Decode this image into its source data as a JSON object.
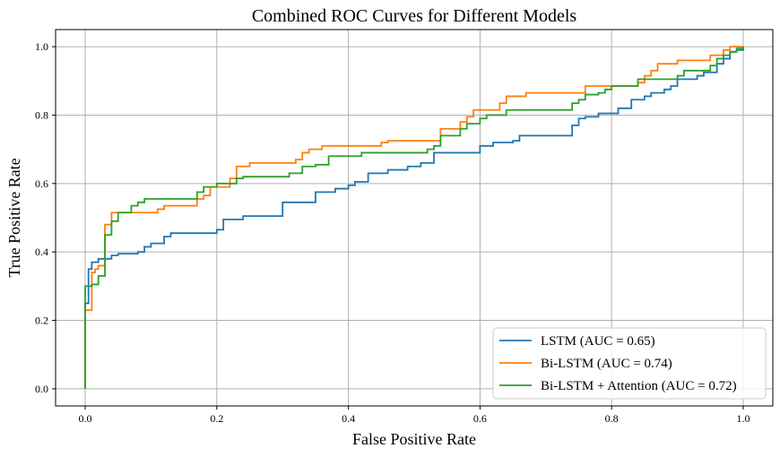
{
  "chart_data": {
    "type": "line",
    "title": "Combined ROC Curves for Different Models",
    "xlabel": "False Positive Rate",
    "ylabel": "True Positive Rate",
    "xlim": [
      -0.045,
      1.045
    ],
    "ylim": [
      -0.05,
      1.05
    ],
    "xticks": [
      0.0,
      0.2,
      0.4,
      0.6,
      0.8,
      1.0
    ],
    "yticks": [
      0.0,
      0.2,
      0.4,
      0.6,
      0.8,
      1.0
    ],
    "xtick_labels": [
      "0.0",
      "0.2",
      "0.4",
      "0.6",
      "0.8",
      "1.0"
    ],
    "ytick_labels": [
      "0.0",
      "0.2",
      "0.4",
      "0.6",
      "0.8",
      "1.0"
    ],
    "grid": true,
    "legend_position": "lower-right",
    "series": [
      {
        "name": "LSTM (AUC = 0.65)",
        "color": "#1f77b4",
        "points": [
          [
            0,
            0
          ],
          [
            0,
            0.25
          ],
          [
            0.005,
            0.25
          ],
          [
            0.005,
            0.35
          ],
          [
            0.01,
            0.35
          ],
          [
            0.01,
            0.37
          ],
          [
            0.02,
            0.37
          ],
          [
            0.02,
            0.38
          ],
          [
            0.04,
            0.38
          ],
          [
            0.04,
            0.39
          ],
          [
            0.05,
            0.39
          ],
          [
            0.05,
            0.395
          ],
          [
            0.08,
            0.395
          ],
          [
            0.08,
            0.4
          ],
          [
            0.09,
            0.4
          ],
          [
            0.09,
            0.415
          ],
          [
            0.1,
            0.415
          ],
          [
            0.1,
            0.425
          ],
          [
            0.12,
            0.425
          ],
          [
            0.12,
            0.445
          ],
          [
            0.13,
            0.445
          ],
          [
            0.13,
            0.455
          ],
          [
            0.2,
            0.455
          ],
          [
            0.2,
            0.465
          ],
          [
            0.21,
            0.465
          ],
          [
            0.21,
            0.495
          ],
          [
            0.24,
            0.495
          ],
          [
            0.24,
            0.505
          ],
          [
            0.3,
            0.505
          ],
          [
            0.3,
            0.545
          ],
          [
            0.35,
            0.545
          ],
          [
            0.35,
            0.575
          ],
          [
            0.38,
            0.575
          ],
          [
            0.38,
            0.585
          ],
          [
            0.4,
            0.585
          ],
          [
            0.4,
            0.595
          ],
          [
            0.41,
            0.595
          ],
          [
            0.41,
            0.605
          ],
          [
            0.43,
            0.605
          ],
          [
            0.43,
            0.63
          ],
          [
            0.46,
            0.63
          ],
          [
            0.46,
            0.64
          ],
          [
            0.49,
            0.64
          ],
          [
            0.49,
            0.65
          ],
          [
            0.51,
            0.65
          ],
          [
            0.51,
            0.66
          ],
          [
            0.53,
            0.66
          ],
          [
            0.53,
            0.69
          ],
          [
            0.6,
            0.69
          ],
          [
            0.6,
            0.71
          ],
          [
            0.62,
            0.71
          ],
          [
            0.62,
            0.72
          ],
          [
            0.65,
            0.72
          ],
          [
            0.65,
            0.725
          ],
          [
            0.66,
            0.725
          ],
          [
            0.66,
            0.74
          ],
          [
            0.74,
            0.74
          ],
          [
            0.74,
            0.77
          ],
          [
            0.75,
            0.77
          ],
          [
            0.75,
            0.79
          ],
          [
            0.76,
            0.79
          ],
          [
            0.76,
            0.795
          ],
          [
            0.78,
            0.795
          ],
          [
            0.78,
            0.805
          ],
          [
            0.81,
            0.805
          ],
          [
            0.81,
            0.82
          ],
          [
            0.83,
            0.82
          ],
          [
            0.83,
            0.845
          ],
          [
            0.85,
            0.845
          ],
          [
            0.85,
            0.855
          ],
          [
            0.86,
            0.855
          ],
          [
            0.86,
            0.865
          ],
          [
            0.88,
            0.865
          ],
          [
            0.88,
            0.875
          ],
          [
            0.89,
            0.875
          ],
          [
            0.89,
            0.885
          ],
          [
            0.9,
            0.885
          ],
          [
            0.9,
            0.905
          ],
          [
            0.93,
            0.905
          ],
          [
            0.93,
            0.915
          ],
          [
            0.94,
            0.915
          ],
          [
            0.94,
            0.925
          ],
          [
            0.96,
            0.925
          ],
          [
            0.96,
            0.95
          ],
          [
            0.97,
            0.95
          ],
          [
            0.97,
            0.965
          ],
          [
            0.98,
            0.965
          ],
          [
            0.98,
            0.985
          ],
          [
            0.99,
            0.985
          ],
          [
            0.99,
            0.99
          ],
          [
            1.0,
            0.99
          ],
          [
            1.0,
            1.0
          ]
        ]
      },
      {
        "name": "Bi-LSTM (AUC = 0.74)",
        "color": "#ff7f0e",
        "points": [
          [
            0,
            0
          ],
          [
            0,
            0.23
          ],
          [
            0.01,
            0.23
          ],
          [
            0.01,
            0.34
          ],
          [
            0.015,
            0.34
          ],
          [
            0.015,
            0.35
          ],
          [
            0.02,
            0.35
          ],
          [
            0.02,
            0.36
          ],
          [
            0.03,
            0.36
          ],
          [
            0.03,
            0.48
          ],
          [
            0.04,
            0.48
          ],
          [
            0.04,
            0.515
          ],
          [
            0.11,
            0.515
          ],
          [
            0.11,
            0.525
          ],
          [
            0.12,
            0.525
          ],
          [
            0.12,
            0.535
          ],
          [
            0.17,
            0.535
          ],
          [
            0.17,
            0.555
          ],
          [
            0.18,
            0.555
          ],
          [
            0.18,
            0.565
          ],
          [
            0.19,
            0.565
          ],
          [
            0.19,
            0.59
          ],
          [
            0.22,
            0.59
          ],
          [
            0.22,
            0.615
          ],
          [
            0.23,
            0.615
          ],
          [
            0.23,
            0.65
          ],
          [
            0.25,
            0.65
          ],
          [
            0.25,
            0.66
          ],
          [
            0.32,
            0.66
          ],
          [
            0.32,
            0.67
          ],
          [
            0.33,
            0.67
          ],
          [
            0.33,
            0.69
          ],
          [
            0.34,
            0.69
          ],
          [
            0.34,
            0.7
          ],
          [
            0.36,
            0.7
          ],
          [
            0.36,
            0.71
          ],
          [
            0.45,
            0.71
          ],
          [
            0.45,
            0.72
          ],
          [
            0.46,
            0.72
          ],
          [
            0.46,
            0.725
          ],
          [
            0.54,
            0.725
          ],
          [
            0.54,
            0.76
          ],
          [
            0.57,
            0.76
          ],
          [
            0.57,
            0.78
          ],
          [
            0.58,
            0.78
          ],
          [
            0.58,
            0.795
          ],
          [
            0.59,
            0.795
          ],
          [
            0.59,
            0.815
          ],
          [
            0.63,
            0.815
          ],
          [
            0.63,
            0.835
          ],
          [
            0.64,
            0.835
          ],
          [
            0.64,
            0.855
          ],
          [
            0.67,
            0.855
          ],
          [
            0.67,
            0.865
          ],
          [
            0.76,
            0.865
          ],
          [
            0.76,
            0.885
          ],
          [
            0.84,
            0.885
          ],
          [
            0.84,
            0.895
          ],
          [
            0.85,
            0.895
          ],
          [
            0.85,
            0.915
          ],
          [
            0.86,
            0.915
          ],
          [
            0.86,
            0.93
          ],
          [
            0.87,
            0.93
          ],
          [
            0.87,
            0.95
          ],
          [
            0.9,
            0.95
          ],
          [
            0.9,
            0.96
          ],
          [
            0.95,
            0.96
          ],
          [
            0.95,
            0.975
          ],
          [
            0.97,
            0.975
          ],
          [
            0.97,
            0.99
          ],
          [
            0.98,
            0.99
          ],
          [
            0.98,
            1.0
          ],
          [
            1.0,
            1.0
          ]
        ]
      },
      {
        "name": "Bi-LSTM + Attention (AUC = 0.72)",
        "color": "#2ca02c",
        "points": [
          [
            0,
            0
          ],
          [
            0,
            0.3
          ],
          [
            0.01,
            0.3
          ],
          [
            0.01,
            0.305
          ],
          [
            0.02,
            0.305
          ],
          [
            0.02,
            0.33
          ],
          [
            0.03,
            0.33
          ],
          [
            0.03,
            0.45
          ],
          [
            0.04,
            0.45
          ],
          [
            0.04,
            0.49
          ],
          [
            0.05,
            0.49
          ],
          [
            0.05,
            0.515
          ],
          [
            0.07,
            0.515
          ],
          [
            0.07,
            0.535
          ],
          [
            0.08,
            0.535
          ],
          [
            0.08,
            0.545
          ],
          [
            0.09,
            0.545
          ],
          [
            0.09,
            0.555
          ],
          [
            0.17,
            0.555
          ],
          [
            0.17,
            0.575
          ],
          [
            0.18,
            0.575
          ],
          [
            0.18,
            0.59
          ],
          [
            0.2,
            0.59
          ],
          [
            0.2,
            0.6
          ],
          [
            0.23,
            0.6
          ],
          [
            0.23,
            0.615
          ],
          [
            0.24,
            0.615
          ],
          [
            0.24,
            0.62
          ],
          [
            0.31,
            0.62
          ],
          [
            0.31,
            0.63
          ],
          [
            0.33,
            0.63
          ],
          [
            0.33,
            0.65
          ],
          [
            0.35,
            0.65
          ],
          [
            0.35,
            0.655
          ],
          [
            0.37,
            0.655
          ],
          [
            0.37,
            0.68
          ],
          [
            0.42,
            0.68
          ],
          [
            0.42,
            0.69
          ],
          [
            0.52,
            0.69
          ],
          [
            0.52,
            0.7
          ],
          [
            0.53,
            0.7
          ],
          [
            0.53,
            0.71
          ],
          [
            0.54,
            0.71
          ],
          [
            0.54,
            0.74
          ],
          [
            0.57,
            0.74
          ],
          [
            0.57,
            0.76
          ],
          [
            0.58,
            0.76
          ],
          [
            0.58,
            0.775
          ],
          [
            0.6,
            0.775
          ],
          [
            0.6,
            0.79
          ],
          [
            0.61,
            0.79
          ],
          [
            0.61,
            0.8
          ],
          [
            0.64,
            0.8
          ],
          [
            0.64,
            0.815
          ],
          [
            0.74,
            0.815
          ],
          [
            0.74,
            0.835
          ],
          [
            0.75,
            0.835
          ],
          [
            0.75,
            0.845
          ],
          [
            0.76,
            0.845
          ],
          [
            0.76,
            0.86
          ],
          [
            0.78,
            0.86
          ],
          [
            0.78,
            0.865
          ],
          [
            0.79,
            0.865
          ],
          [
            0.79,
            0.875
          ],
          [
            0.8,
            0.875
          ],
          [
            0.8,
            0.885
          ],
          [
            0.84,
            0.885
          ],
          [
            0.84,
            0.905
          ],
          [
            0.9,
            0.905
          ],
          [
            0.9,
            0.915
          ],
          [
            0.91,
            0.915
          ],
          [
            0.91,
            0.93
          ],
          [
            0.95,
            0.93
          ],
          [
            0.95,
            0.945
          ],
          [
            0.96,
            0.945
          ],
          [
            0.96,
            0.965
          ],
          [
            0.97,
            0.965
          ],
          [
            0.97,
            0.975
          ],
          [
            0.98,
            0.975
          ],
          [
            0.98,
            0.985
          ],
          [
            0.99,
            0.985
          ],
          [
            0.99,
            0.995
          ],
          [
            1.0,
            0.995
          ],
          [
            1.0,
            1.0
          ]
        ]
      }
    ]
  }
}
